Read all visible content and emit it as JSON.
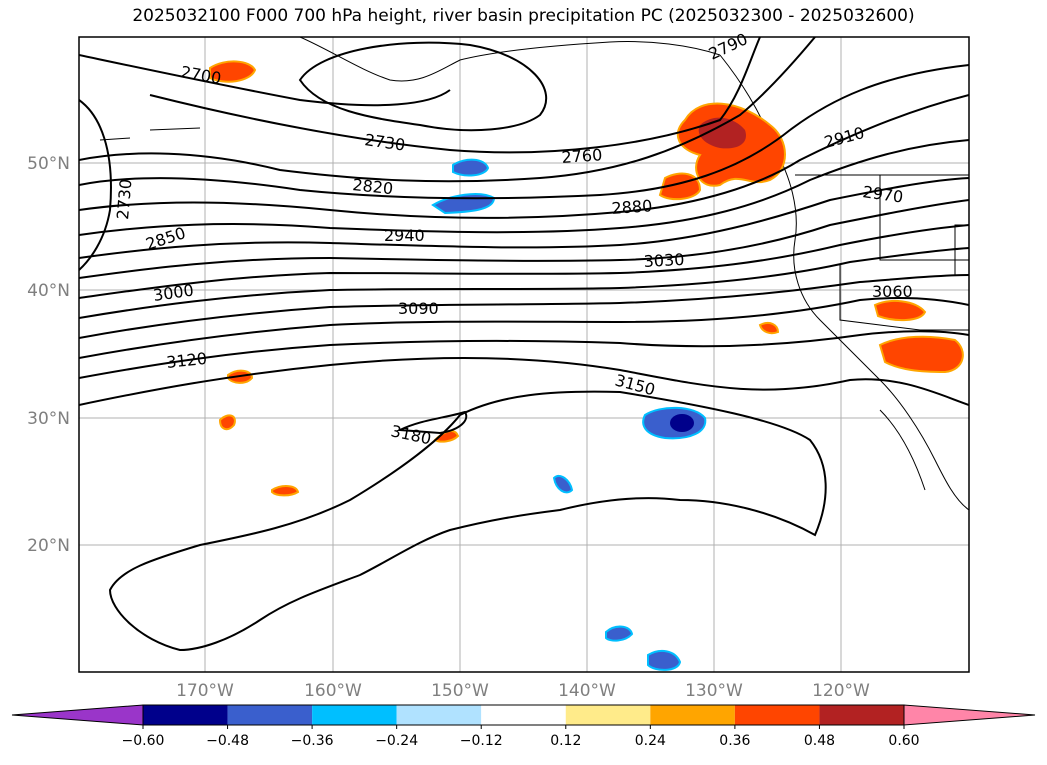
{
  "title": "2025032100 F000 700 hPa height, river basin precipitation PC (2025032300 - 2025032600)",
  "lat_labels": [
    "50°N",
    "40°N",
    "30°N",
    "20°N"
  ],
  "lon_labels": [
    "170°W",
    "160°W",
    "150°W",
    "140°W",
    "130°W",
    "120°W"
  ],
  "contour_labels": [
    "2790",
    "2700",
    "2730",
    "2760",
    "2910",
    "2820",
    "2730",
    "2880",
    "2970",
    "2850",
    "2940",
    "3030",
    "3000",
    "3090",
    "3060",
    "3120",
    "3150",
    "3180"
  ],
  "colorbar": {
    "ticks": [
      "−0.60",
      "−0.48",
      "−0.36",
      "−0.24",
      "−0.12",
      "0.12",
      "0.24",
      "0.36",
      "0.48",
      "0.60"
    ],
    "colors": [
      "#9a35c9",
      "#00008b",
      "#3a5fcd",
      "#00bfff",
      "#b0e2ff",
      "#ffffff",
      "#ffeb8a",
      "#ffa500",
      "#ff4500",
      "#b22222",
      "#ff85a8"
    ]
  },
  "colors": {
    "contour": "#000000",
    "coast": "#000000",
    "grid": "#b0b0b0",
    "label_gray": "#7f7f7f"
  }
}
